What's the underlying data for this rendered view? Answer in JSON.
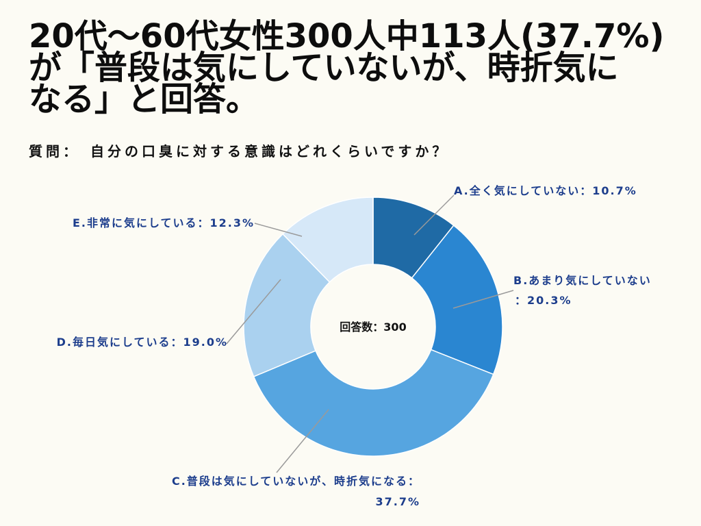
{
  "title_lines": [
    "20代〜60代女性300人中113人(37.7%)",
    "が「普段は気にしていないが、時折気に",
    "なる」と回答。"
  ],
  "question": "質問：　自分の口臭に対する意識はどれくらいですか？",
  "colors": {
    "background": "#fcfbf4",
    "title": "#0d0d0d",
    "label": "#1c3d8c",
    "leader": "#9a9a9a",
    "slice_border": "#ffffff"
  },
  "chart_data": {
    "type": "pie",
    "donut": true,
    "center_label": "回答数：300",
    "slices": [
      {
        "value": 10.7,
        "color": "#1f6aa5",
        "label_lines": [
          "A.全く気にしていない：10.7%"
        ]
      },
      {
        "value": 20.3,
        "color": "#2a86d1",
        "label_lines": [
          "B.あまり気にしていない",
          "：20.3%"
        ]
      },
      {
        "value": 37.7,
        "color": "#56a5e0",
        "label_lines": [
          "C.普段は気にしていないが、時折気になる：",
          "37.7%"
        ]
      },
      {
        "value": 19.0,
        "color": "#aad1ef",
        "label_lines": [
          "D.毎日気にしている：19.0%"
        ]
      },
      {
        "value": 12.3,
        "color": "#d6e8f8",
        "label_lines": [
          "E.非常に気にしている：12.3%"
        ]
      }
    ]
  }
}
